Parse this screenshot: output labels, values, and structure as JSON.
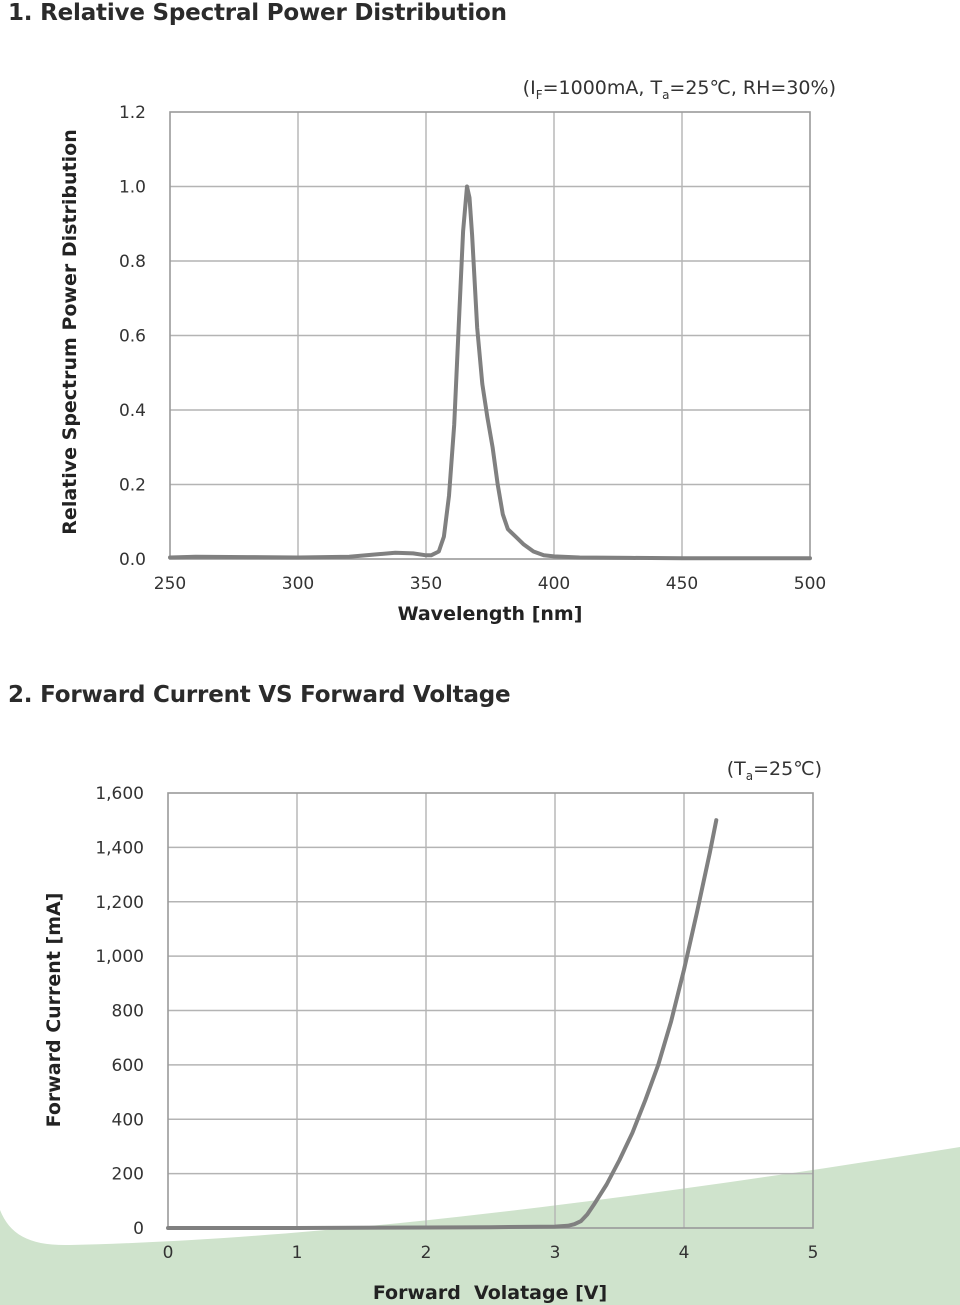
{
  "sections": [
    {
      "title": "1. Relative Spectral Power Distribution"
    },
    {
      "title": "2. Forward Current VS Forward Voltage"
    }
  ],
  "colors": {
    "curve": "#808080",
    "grid": "#b4b4b4",
    "decor_wave": "#cfe3cc"
  },
  "chart_data": [
    {
      "type": "line",
      "title": "",
      "condition": "(IF=1000mA, Ta=25℃, RH=30%)",
      "condition_parts": {
        "open": "(I",
        "sub1": "F",
        "mid": "=1000mA, T",
        "sub2": "a",
        "close": "=25℃, RH=30%)"
      },
      "xlabel": "Wavelength [nm]",
      "ylabel": "Relative Spectrum Power Distribution",
      "xlim": [
        250,
        500
      ],
      "ylim": [
        0,
        1.2
      ],
      "xticks": [
        "250",
        "300",
        "350",
        "400",
        "450",
        "500"
      ],
      "yticks": [
        "0.0",
        "0.2",
        "0.4",
        "0.6",
        "0.8",
        "1.0",
        "1.2"
      ],
      "grid": true,
      "series": [
        {
          "x": [
            250,
            260,
            280,
            300,
            320,
            330,
            338,
            345,
            350,
            352,
            355,
            357,
            359,
            361,
            363,
            364.5,
            366,
            367,
            368,
            370,
            372,
            374,
            376,
            378,
            380,
            382,
            385,
            388,
            392,
            396,
            400,
            410,
            430,
            450,
            470,
            500
          ],
          "y": [
            0.004,
            0.006,
            0.005,
            0.004,
            0.006,
            0.012,
            0.017,
            0.015,
            0.01,
            0.01,
            0.02,
            0.06,
            0.17,
            0.36,
            0.66,
            0.88,
            1.0,
            0.97,
            0.87,
            0.62,
            0.47,
            0.38,
            0.3,
            0.2,
            0.12,
            0.08,
            0.06,
            0.04,
            0.02,
            0.01,
            0.007,
            0.004,
            0.003,
            0.002,
            0.002,
            0.002
          ]
        }
      ]
    },
    {
      "type": "line",
      "title": "",
      "condition": "(Ta=25℃)",
      "condition_parts": {
        "open": "(T",
        "sub1": "a",
        "close": "=25℃)"
      },
      "xlabel": "Forward  Volatage [V]",
      "ylabel": "Forward Current [mA]",
      "xlim": [
        0,
        5
      ],
      "ylim": [
        0,
        1600
      ],
      "xticks": [
        "0",
        "1",
        "2",
        "3",
        "4",
        "5"
      ],
      "yticks": [
        "0",
        "200",
        "400",
        "600",
        "800",
        "1,000",
        "1,200",
        "1,400",
        "1,600"
      ],
      "grid": true,
      "series": [
        {
          "x": [
            0,
            1,
            2,
            2.5,
            3.0,
            3.1,
            3.15,
            3.2,
            3.25,
            3.3,
            3.4,
            3.5,
            3.6,
            3.7,
            3.8,
            3.9,
            4.0,
            4.1,
            4.2,
            4.25
          ],
          "y": [
            0,
            0,
            2,
            3,
            5,
            8,
            14,
            25,
            50,
            85,
            160,
            250,
            350,
            470,
            600,
            760,
            950,
            1160,
            1380,
            1500
          ]
        }
      ]
    }
  ]
}
